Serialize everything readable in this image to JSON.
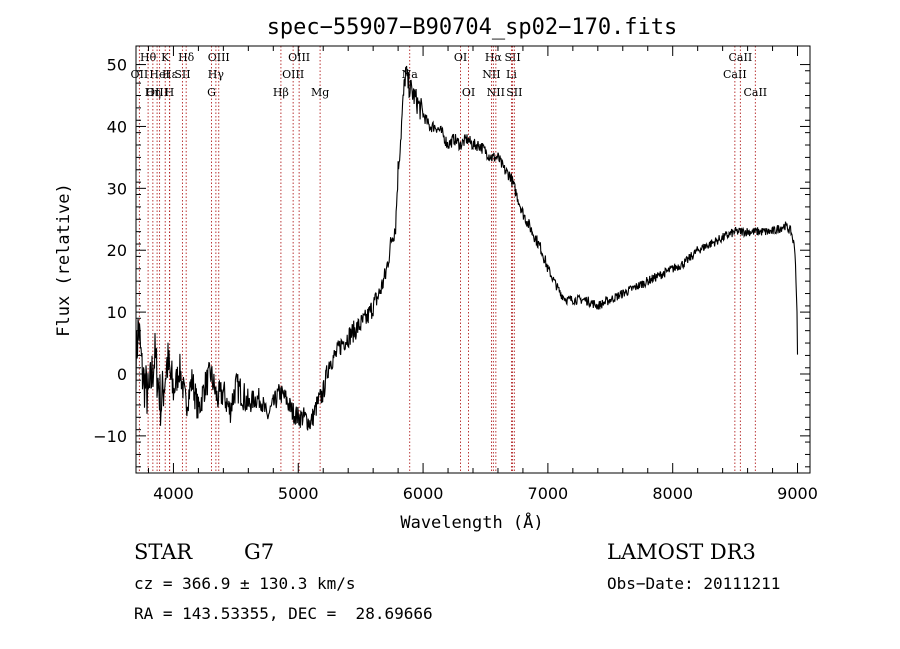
{
  "chart_data": {
    "type": "line",
    "title": "spec−55907−B90704_sp02−170.fits",
    "xlabel": "Wavelength (Å)",
    "ylabel": "Flux (relative)",
    "xlim": [
      3700,
      9100
    ],
    "ylim": [
      -16,
      53
    ],
    "x_ticks": [
      4000,
      5000,
      6000,
      7000,
      8000,
      9000
    ],
    "y_ticks": [
      -10,
      0,
      10,
      20,
      30,
      40,
      50
    ],
    "y_tick_labels": [
      "−10",
      "0",
      "10",
      "20",
      "30",
      "40",
      "50"
    ],
    "grid": false,
    "line_color": "#000000",
    "marker_color": "#b22222",
    "series": [
      {
        "name": "flux",
        "anchors": [
          [
            3700,
            2
          ],
          [
            3720,
            8
          ],
          [
            3750,
            0
          ],
          [
            3800,
            -4
          ],
          [
            3850,
            3
          ],
          [
            3900,
            -5
          ],
          [
            3950,
            2
          ],
          [
            4000,
            -3
          ],
          [
            4050,
            1
          ],
          [
            4100,
            -5
          ],
          [
            4150,
            -1
          ],
          [
            4200,
            -6
          ],
          [
            4250,
            -2
          ],
          [
            4300,
            0
          ],
          [
            4350,
            -4
          ],
          [
            4400,
            -3
          ],
          [
            4450,
            -6
          ],
          [
            4500,
            -2
          ],
          [
            4550,
            -3
          ],
          [
            4600,
            -5
          ],
          [
            4650,
            -4
          ],
          [
            4700,
            -4
          ],
          [
            4750,
            -7
          ],
          [
            4800,
            -5
          ],
          [
            4850,
            -3
          ],
          [
            4900,
            -4
          ],
          [
            4950,
            -6
          ],
          [
            5000,
            -7
          ],
          [
            5050,
            -7
          ],
          [
            5100,
            -8
          ],
          [
            5150,
            -5
          ],
          [
            5200,
            -3
          ],
          [
            5250,
            2
          ],
          [
            5300,
            3
          ],
          [
            5350,
            5
          ],
          [
            5400,
            6
          ],
          [
            5450,
            7
          ],
          [
            5500,
            8
          ],
          [
            5550,
            9
          ],
          [
            5600,
            11
          ],
          [
            5650,
            13
          ],
          [
            5700,
            16
          ],
          [
            5750,
            22
          ],
          [
            5780,
            24
          ],
          [
            5800,
            33
          ],
          [
            5820,
            38
          ],
          [
            5840,
            44
          ],
          [
            5860,
            49
          ],
          [
            5880,
            47
          ],
          [
            5900,
            46
          ],
          [
            5950,
            44
          ],
          [
            6000,
            42
          ],
          [
            6050,
            40
          ],
          [
            6100,
            40
          ],
          [
            6150,
            39
          ],
          [
            6200,
            37
          ],
          [
            6250,
            38
          ],
          [
            6300,
            37
          ],
          [
            6350,
            38
          ],
          [
            6400,
            37
          ],
          [
            6450,
            37
          ],
          [
            6500,
            36
          ],
          [
            6550,
            35
          ],
          [
            6600,
            35
          ],
          [
            6650,
            33
          ],
          [
            6700,
            32
          ],
          [
            6750,
            29
          ],
          [
            6800,
            26
          ],
          [
            6850,
            24
          ],
          [
            6900,
            22
          ],
          [
            6950,
            20
          ],
          [
            7000,
            17
          ],
          [
            7050,
            15
          ],
          [
            7100,
            13
          ],
          [
            7150,
            12
          ],
          [
            7200,
            12
          ],
          [
            7300,
            12
          ],
          [
            7400,
            11
          ],
          [
            7500,
            12
          ],
          [
            7600,
            13
          ],
          [
            7700,
            14
          ],
          [
            7800,
            15
          ],
          [
            7900,
            16
          ],
          [
            8000,
            17
          ],
          [
            8100,
            18
          ],
          [
            8200,
            20
          ],
          [
            8300,
            21
          ],
          [
            8400,
            22
          ],
          [
            8500,
            23
          ],
          [
            8600,
            23
          ],
          [
            8700,
            23
          ],
          [
            8800,
            23
          ],
          [
            8900,
            24
          ],
          [
            8950,
            23
          ],
          [
            8980,
            20
          ],
          [
            8995,
            11
          ],
          [
            9000,
            3
          ]
        ]
      }
    ],
    "line_markers": [
      {
        "label": "Hθ",
        "x": 3797,
        "row": 0
      },
      {
        "label": "OII",
        "x": 3727,
        "row": 1
      },
      {
        "label": "OIII",
        "x": 3869,
        "row": 2
      },
      {
        "label": "K",
        "x": 3934,
        "row": 0
      },
      {
        "label": "Hε",
        "x": 3970,
        "row": 1
      },
      {
        "label": "Hη",
        "x": 3835,
        "row": 2
      },
      {
        "label": "Hδ",
        "x": 4102,
        "row": 0
      },
      {
        "label": "HeI",
        "x": 3889,
        "row": 1
      },
      {
        "label": "H",
        "x": 3968,
        "row": 2
      },
      {
        "label": "OIII",
        "x": 4363,
        "row": 0
      },
      {
        "label": "SII",
        "x": 4072,
        "row": 1
      },
      {
        "label": "G",
        "x": 4305,
        "row": 2
      },
      {
        "label": "Hγ",
        "x": 4340,
        "row": 1
      },
      {
        "label": "OIII",
        "x": 5007,
        "row": 0
      },
      {
        "label": "OIII",
        "x": 4959,
        "row": 1
      },
      {
        "label": "Hβ",
        "x": 4861,
        "row": 2
      },
      {
        "label": "Mg",
        "x": 5175,
        "row": 2
      },
      {
        "label": "Na",
        "x": 5893,
        "row": 1
      },
      {
        "label": "OI",
        "x": 6300,
        "row": 0
      },
      {
        "label": "OI",
        "x": 6364,
        "row": 2
      },
      {
        "label": "Hα",
        "x": 6563,
        "row": 0
      },
      {
        "label": "SII",
        "x": 6717,
        "row": 0
      },
      {
        "label": "NII",
        "x": 6548,
        "row": 1
      },
      {
        "label": "Li",
        "x": 6708,
        "row": 1
      },
      {
        "label": "NII",
        "x": 6583,
        "row": 2
      },
      {
        "label": "SII",
        "x": 6731,
        "row": 2
      },
      {
        "label": "CaII",
        "x": 8542,
        "row": 0
      },
      {
        "label": "CaII",
        "x": 8498,
        "row": 1
      },
      {
        "label": "CaII",
        "x": 8662,
        "row": 2
      }
    ]
  },
  "info": {
    "object_class": "STAR",
    "subclass": "G7",
    "survey": "LAMOST DR3",
    "cz": "cz = 366.9 ± 130.3 km/s",
    "obs_date": "Obs−Date: 20111211",
    "coords": "RA = 143.53355, DEC =  28.69666"
  }
}
